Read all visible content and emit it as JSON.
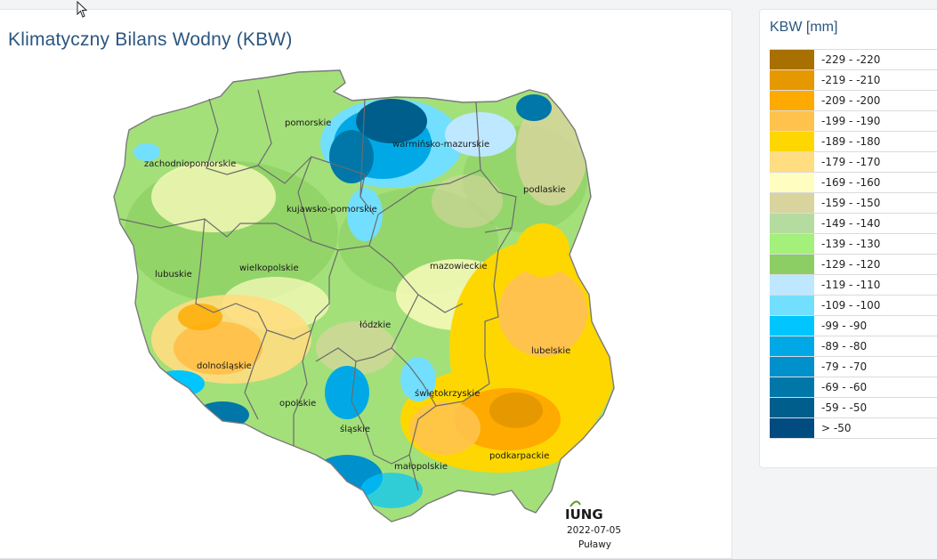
{
  "map": {
    "title": "Klimatyczny Bilans Wodny (KBW)",
    "regions": [
      {
        "name": "pomorskie"
      },
      {
        "name": "warmińsko-mazurskie"
      },
      {
        "name": "zachodniopomorskie"
      },
      {
        "name": "podlaskie"
      },
      {
        "name": "kujawsko-pomorskie"
      },
      {
        "name": "mazowieckie"
      },
      {
        "name": "lubuskie"
      },
      {
        "name": "wielkopolskie"
      },
      {
        "name": "łódzkie"
      },
      {
        "name": "lubelskie"
      },
      {
        "name": "dolnośląskie"
      },
      {
        "name": "świętokrzyskie"
      },
      {
        "name": "opolskie"
      },
      {
        "name": "śląskie"
      },
      {
        "name": "podkarpackie"
      },
      {
        "name": "małopolskie"
      }
    ],
    "logo": "IUNG",
    "date": "2022-07-05",
    "place": "Puławy"
  },
  "legend": {
    "title": "KBW [mm]",
    "items": [
      {
        "label": "-229 - -220",
        "color": "#a87000"
      },
      {
        "label": "-219 - -210",
        "color": "#e69800"
      },
      {
        "label": "-209 - -200",
        "color": "#ffaa00"
      },
      {
        "label": "-199 - -190",
        "color": "#ffc34d"
      },
      {
        "label": "-189 - -180",
        "color": "#ffd700"
      },
      {
        "label": "-179 - -170",
        "color": "#ffdd80"
      },
      {
        "label": "-169 - -160",
        "color": "#fffdbf"
      },
      {
        "label": "-159 - -150",
        "color": "#d9d49e"
      },
      {
        "label": "-149 - -140",
        "color": "#b5dca0"
      },
      {
        "label": "-139 - -130",
        "color": "#a3f07a"
      },
      {
        "label": "-129 - -120",
        "color": "#8cce63"
      },
      {
        "label": "-119 - -110",
        "color": "#bee8ff"
      },
      {
        "label": "-109 - -100",
        "color": "#73dfff"
      },
      {
        "label": "-99 - -90",
        "color": "#00c5ff"
      },
      {
        "label": "-89 - -80",
        "color": "#00a9e6"
      },
      {
        "label": "-79 - -70",
        "color": "#0090cc"
      },
      {
        "label": "-69 - -60",
        "color": "#0077a8"
      },
      {
        "label": "-59 - -50",
        "color": "#005e8c"
      },
      {
        "label": "> -50",
        "color": "#004b80"
      }
    ]
  }
}
